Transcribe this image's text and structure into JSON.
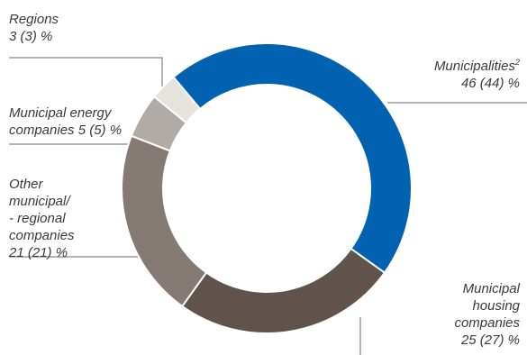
{
  "chart_data": {
    "type": "pie",
    "donut": true,
    "unit": "%",
    "legend": "none",
    "slices": [
      {
        "line1": "Municipalities",
        "sup": "2",
        "line2": "46 (44) %",
        "value": 46,
        "prior": 44,
        "color": "#0062b1"
      },
      {
        "lines": [
          "Municipal",
          "housing",
          "companies",
          "25 (27) %"
        ],
        "value": 25,
        "prior": 27,
        "color": "#5f534c"
      },
      {
        "lines": [
          "Other",
          "municipal/",
          "- regional",
          "companies",
          "21 (21) %"
        ],
        "value": 21,
        "prior": 21,
        "color": "#857a73"
      },
      {
        "lines": [
          "Municipal energy",
          "companies 5 (5) %"
        ],
        "value": 5,
        "prior": 5,
        "color": "#b1aba7"
      },
      {
        "lines": [
          "Regions",
          "3 (3) %"
        ],
        "value": 3,
        "prior": 3,
        "color": "#e5e3de"
      }
    ]
  }
}
